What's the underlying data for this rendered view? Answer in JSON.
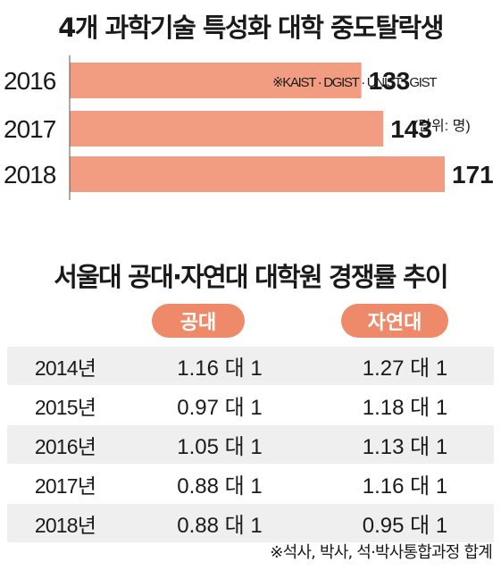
{
  "chart1": {
    "title": "4개 과학기술 특성화 대학 중도탈락생",
    "note": "※KAIST · DGIST · UNIST · GIST",
    "unit": "(단위: 명)",
    "bar_color": "#f29d82"
  },
  "chart2": {
    "title": "서울대 공대·자연대 대학원 경쟁률 추이",
    "col_a": "공대",
    "col_b": "자연대",
    "rows": [
      {
        "year": "2014년",
        "a": "1.16 대 1",
        "b": "1.27 대 1"
      },
      {
        "year": "2015년",
        "a": "0.97 대 1",
        "b": "1.18 대 1"
      },
      {
        "year": "2016년",
        "a": "1.05 대 1",
        "b": "1.13 대 1"
      },
      {
        "year": "2017년",
        "a": "0.88 대 1",
        "b": "1.16 대 1"
      },
      {
        "year": "2018년",
        "a": "0.88 대 1",
        "b": "0.95 대 1"
      }
    ],
    "footnote": "※석사, 박사, 석·박사통합과정 합계",
    "pill_color": "#ee8a6a",
    "shade_color": "#efefef"
  },
  "chart_data": [
    {
      "type": "bar",
      "orientation": "horizontal",
      "title": "4개 과학기술 특성화 대학 중도탈락생",
      "categories": [
        "2016",
        "2017",
        "2018"
      ],
      "values": [
        133,
        143,
        171
      ],
      "xlim": [
        0,
        171
      ],
      "grid": false
    },
    {
      "type": "table",
      "title": "서울대 공대·자연대 대학원 경쟁률 추이",
      "columns": [
        "",
        "공대",
        "자연대"
      ],
      "rows": [
        [
          "2014년",
          "1.16 대 1",
          "1.27 대 1"
        ],
        [
          "2015년",
          "0.97 대 1",
          "1.18 대 1"
        ],
        [
          "2016년",
          "1.05 대 1",
          "1.13 대 1"
        ],
        [
          "2017년",
          "0.88 대 1",
          "1.16 대 1"
        ],
        [
          "2018년",
          "0.88 대 1",
          "0.95 대 1"
        ]
      ]
    }
  ]
}
